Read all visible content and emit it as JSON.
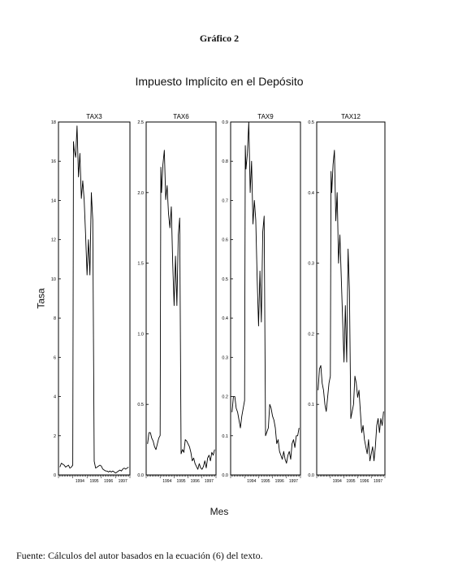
{
  "figure": {
    "caption": "Gráfico 2",
    "title": "Impuesto Implícito en el Depósito",
    "ylabel": "Tasa",
    "xlabel": "Mes",
    "source": "Fuente: Cálculos del autor basados en la ecuación (6) del texto."
  },
  "chart_data": [
    {
      "type": "line",
      "title": "TAX3",
      "ylim": [
        0,
        18
      ],
      "yticks": [
        0,
        2,
        4,
        6,
        8,
        10,
        12,
        14,
        16,
        18
      ],
      "xlim": [
        1993.0,
        1998.0
      ],
      "xticks": [
        "1994",
        "1995",
        "1996",
        "1997"
      ],
      "grid": false,
      "series": [
        {
          "x": [
            1993.1,
            1993.2,
            1993.3,
            1993.4,
            1993.5,
            1993.6,
            1993.7,
            1993.8,
            1993.9,
            1994.0,
            1994.05,
            1994.1,
            1994.2,
            1994.3,
            1994.4,
            1994.5,
            1994.6,
            1994.7,
            1994.8,
            1994.9,
            1995.0,
            1995.1,
            1995.2,
            1995.3,
            1995.4,
            1995.5,
            1995.6,
            1995.7,
            1995.8,
            1995.9,
            1996.0,
            1996.1,
            1996.2,
            1996.3,
            1996.4,
            1996.5,
            1996.6,
            1996.7,
            1996.8,
            1996.9,
            1997.0,
            1997.1,
            1997.2,
            1997.3,
            1997.4,
            1997.5,
            1997.6,
            1997.7,
            1997.8,
            1997.9
          ],
          "values": [
            0.4,
            0.6,
            0.55,
            0.5,
            0.4,
            0.45,
            0.5,
            0.35,
            0.4,
            0.5,
            17.0,
            16.6,
            16.2,
            17.8,
            15.2,
            16.4,
            14.1,
            15.0,
            14.0,
            12.2,
            10.2,
            12.0,
            10.2,
            14.4,
            13.0,
            0.7,
            0.35,
            0.4,
            0.45,
            0.5,
            0.45,
            0.3,
            0.25,
            0.2,
            0.2,
            0.15,
            0.2,
            0.15,
            0.2,
            0.15,
            0.1,
            0.15,
            0.2,
            0.25,
            0.2,
            0.3,
            0.35,
            0.3,
            0.35,
            0.4
          ]
        }
      ]
    },
    {
      "type": "line",
      "title": "TAX6",
      "ylim": [
        0.0,
        2.5
      ],
      "yticks": [
        0.0,
        0.5,
        1.0,
        1.5,
        2.0,
        2.5
      ],
      "xlim": [
        1993.0,
        1998.0
      ],
      "xticks": [
        "1994",
        "1995",
        "1996",
        "1997"
      ],
      "grid": false,
      "series": [
        {
          "x": [
            1993.1,
            1993.2,
            1993.3,
            1993.4,
            1993.5,
            1993.6,
            1993.7,
            1993.8,
            1993.9,
            1994.0,
            1994.05,
            1994.1,
            1994.2,
            1994.3,
            1994.4,
            1994.5,
            1994.6,
            1994.7,
            1994.8,
            1994.9,
            1995.0,
            1995.1,
            1995.2,
            1995.3,
            1995.4,
            1995.5,
            1995.6,
            1995.7,
            1995.8,
            1995.9,
            1996.0,
            1996.1,
            1996.2,
            1996.3,
            1996.4,
            1996.5,
            1996.6,
            1996.7,
            1996.8,
            1996.9,
            1997.0,
            1997.1,
            1997.2,
            1997.3,
            1997.4,
            1997.5,
            1997.6,
            1997.7,
            1997.8,
            1997.9
          ],
          "values": [
            0.22,
            0.3,
            0.3,
            0.26,
            0.24,
            0.2,
            0.18,
            0.22,
            0.26,
            0.28,
            2.18,
            2.0,
            2.2,
            2.3,
            1.95,
            2.05,
            1.85,
            1.75,
            1.9,
            1.5,
            1.2,
            1.55,
            1.2,
            1.7,
            1.82,
            0.15,
            0.18,
            0.16,
            0.25,
            0.24,
            0.22,
            0.2,
            0.16,
            0.1,
            0.12,
            0.08,
            0.06,
            0.04,
            0.08,
            0.05,
            0.04,
            0.06,
            0.1,
            0.05,
            0.12,
            0.14,
            0.1,
            0.16,
            0.14,
            0.18
          ]
        }
      ]
    },
    {
      "type": "line",
      "title": "TAX9",
      "ylim": [
        0.0,
        0.9
      ],
      "yticks": [
        0.0,
        0.1,
        0.2,
        0.3,
        0.4,
        0.5,
        0.6,
        0.7,
        0.8,
        0.9
      ],
      "xlim": [
        1993.0,
        1998.0
      ],
      "xticks": [
        "1994",
        "1995",
        "1996",
        "1997"
      ],
      "grid": false,
      "series": [
        {
          "x": [
            1993.1,
            1993.2,
            1993.3,
            1993.4,
            1993.5,
            1993.6,
            1993.7,
            1993.8,
            1993.9,
            1994.0,
            1994.05,
            1994.1,
            1994.2,
            1994.3,
            1994.4,
            1994.5,
            1994.6,
            1994.7,
            1994.8,
            1994.9,
            1995.0,
            1995.1,
            1995.2,
            1995.3,
            1995.4,
            1995.5,
            1995.6,
            1995.7,
            1995.8,
            1995.9,
            1996.0,
            1996.1,
            1996.2,
            1996.3,
            1996.4,
            1996.5,
            1996.6,
            1996.7,
            1996.8,
            1996.9,
            1997.0,
            1997.1,
            1997.2,
            1997.3,
            1997.4,
            1997.5,
            1997.6,
            1997.7,
            1997.8,
            1997.9
          ],
          "values": [
            0.16,
            0.2,
            0.2,
            0.17,
            0.16,
            0.14,
            0.12,
            0.15,
            0.17,
            0.19,
            0.84,
            0.78,
            0.82,
            0.9,
            0.72,
            0.8,
            0.64,
            0.7,
            0.65,
            0.5,
            0.38,
            0.52,
            0.39,
            0.62,
            0.66,
            0.1,
            0.11,
            0.12,
            0.18,
            0.17,
            0.15,
            0.14,
            0.12,
            0.08,
            0.09,
            0.06,
            0.05,
            0.04,
            0.06,
            0.04,
            0.03,
            0.05,
            0.06,
            0.04,
            0.08,
            0.09,
            0.07,
            0.1,
            0.1,
            0.12
          ]
        }
      ]
    },
    {
      "type": "line",
      "title": "TAX12",
      "ylim": [
        0.0,
        0.5
      ],
      "yticks": [
        0.0,
        0.1,
        0.2,
        0.3,
        0.4,
        0.5
      ],
      "xlim": [
        1993.0,
        1998.0
      ],
      "xticks": [
        "1994",
        "1995",
        "1996",
        "1997"
      ],
      "grid": false,
      "series": [
        {
          "x": [
            1993.1,
            1993.2,
            1993.3,
            1993.4,
            1993.5,
            1993.6,
            1993.7,
            1993.8,
            1993.9,
            1994.0,
            1994.05,
            1994.1,
            1994.2,
            1994.3,
            1994.4,
            1994.5,
            1994.6,
            1994.7,
            1994.8,
            1994.9,
            1995.0,
            1995.1,
            1995.2,
            1995.3,
            1995.4,
            1995.5,
            1995.6,
            1995.7,
            1995.8,
            1995.9,
            1996.0,
            1996.1,
            1996.2,
            1996.3,
            1996.4,
            1996.5,
            1996.6,
            1996.7,
            1996.8,
            1996.9,
            1997.0,
            1997.1,
            1997.2,
            1997.3,
            1997.4,
            1997.5,
            1997.6,
            1997.7,
            1997.8,
            1997.9
          ],
          "values": [
            0.12,
            0.15,
            0.155,
            0.13,
            0.12,
            0.1,
            0.09,
            0.11,
            0.13,
            0.14,
            0.43,
            0.4,
            0.44,
            0.46,
            0.36,
            0.4,
            0.3,
            0.34,
            0.28,
            0.22,
            0.16,
            0.24,
            0.16,
            0.32,
            0.26,
            0.08,
            0.09,
            0.1,
            0.14,
            0.13,
            0.11,
            0.12,
            0.09,
            0.06,
            0.07,
            0.05,
            0.04,
            0.03,
            0.05,
            0.02,
            0.03,
            0.04,
            0.02,
            0.04,
            0.07,
            0.08,
            0.06,
            0.08,
            0.07,
            0.09
          ]
        }
      ]
    }
  ]
}
